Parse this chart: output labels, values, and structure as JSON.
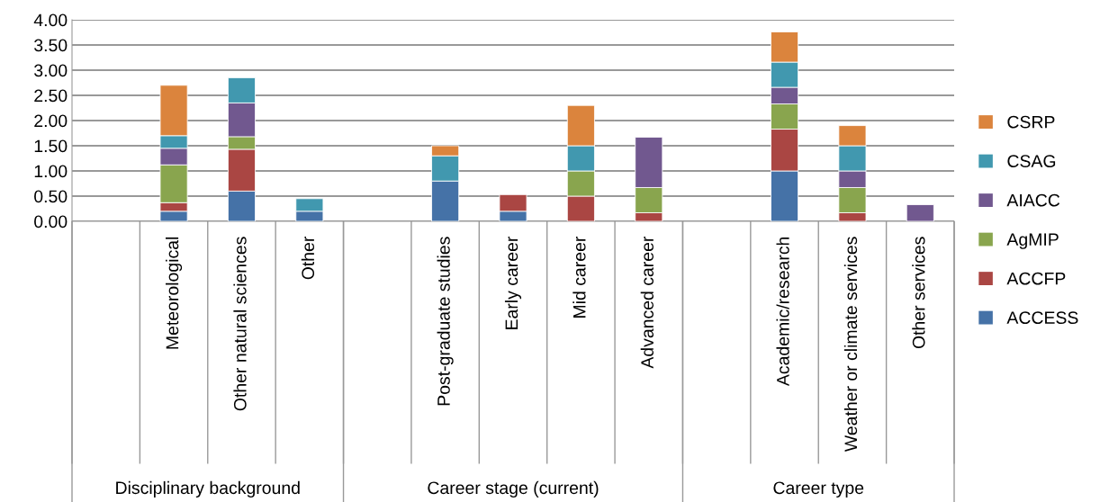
{
  "chart_data": {
    "type": "bar",
    "stacked": true,
    "grid": "y",
    "legend": "right",
    "categories": [
      null,
      "Meteorological",
      "Other natural sciences",
      "Other",
      null,
      "Post-graduate studies",
      "Early career",
      "Mid career",
      "Advanced career",
      null,
      "Academic/research",
      "Weather or climate services",
      "Other services"
    ],
    "series": [
      {
        "name": "ACCESS",
        "color": "#4572a7",
        "values": [
          null,
          0.2,
          0.6,
          0.2,
          null,
          0.8,
          0.2,
          null,
          null,
          null,
          1.0,
          null,
          null
        ]
      },
      {
        "name": "ACCFP",
        "color": "#aa4643",
        "values": [
          null,
          0.17,
          0.83,
          null,
          null,
          null,
          0.33,
          0.5,
          0.17,
          null,
          0.83,
          0.17,
          null
        ]
      },
      {
        "name": "AgMIP",
        "color": "#89a54e",
        "values": [
          null,
          0.75,
          0.25,
          null,
          null,
          null,
          null,
          0.5,
          0.5,
          null,
          0.5,
          0.5,
          null
        ]
      },
      {
        "name": "AIACC",
        "color": "#71588f",
        "values": [
          null,
          0.33,
          0.67,
          null,
          null,
          null,
          null,
          null,
          1.0,
          null,
          0.33,
          0.33,
          0.33
        ]
      },
      {
        "name": "CSAG",
        "color": "#4198af",
        "values": [
          null,
          0.25,
          0.5,
          0.25,
          null,
          0.5,
          null,
          0.5,
          null,
          null,
          0.5,
          0.5,
          null
        ]
      },
      {
        "name": "CSRP",
        "color": "#db843d",
        "values": [
          null,
          1.0,
          null,
          null,
          null,
          0.2,
          null,
          0.8,
          null,
          null,
          0.6,
          0.4,
          null
        ]
      }
    ],
    "ylim": [
      0,
      4
    ],
    "yticks": [
      {
        "value": 0,
        "label": "0.00"
      },
      {
        "value": 0.5,
        "label": "0.50"
      },
      {
        "value": 1,
        "label": "1.00"
      },
      {
        "value": 1.5,
        "label": "1.50"
      },
      {
        "value": 2,
        "label": "2.00"
      },
      {
        "value": 2.5,
        "label": "2.50"
      },
      {
        "value": 3,
        "label": "3.00"
      },
      {
        "value": 3.5,
        "label": "3.50"
      },
      {
        "value": 4,
        "label": "4.00"
      }
    ],
    "annotations": [
      "Disciplinary background",
      "Career stage (current)",
      "Career type"
    ]
  }
}
